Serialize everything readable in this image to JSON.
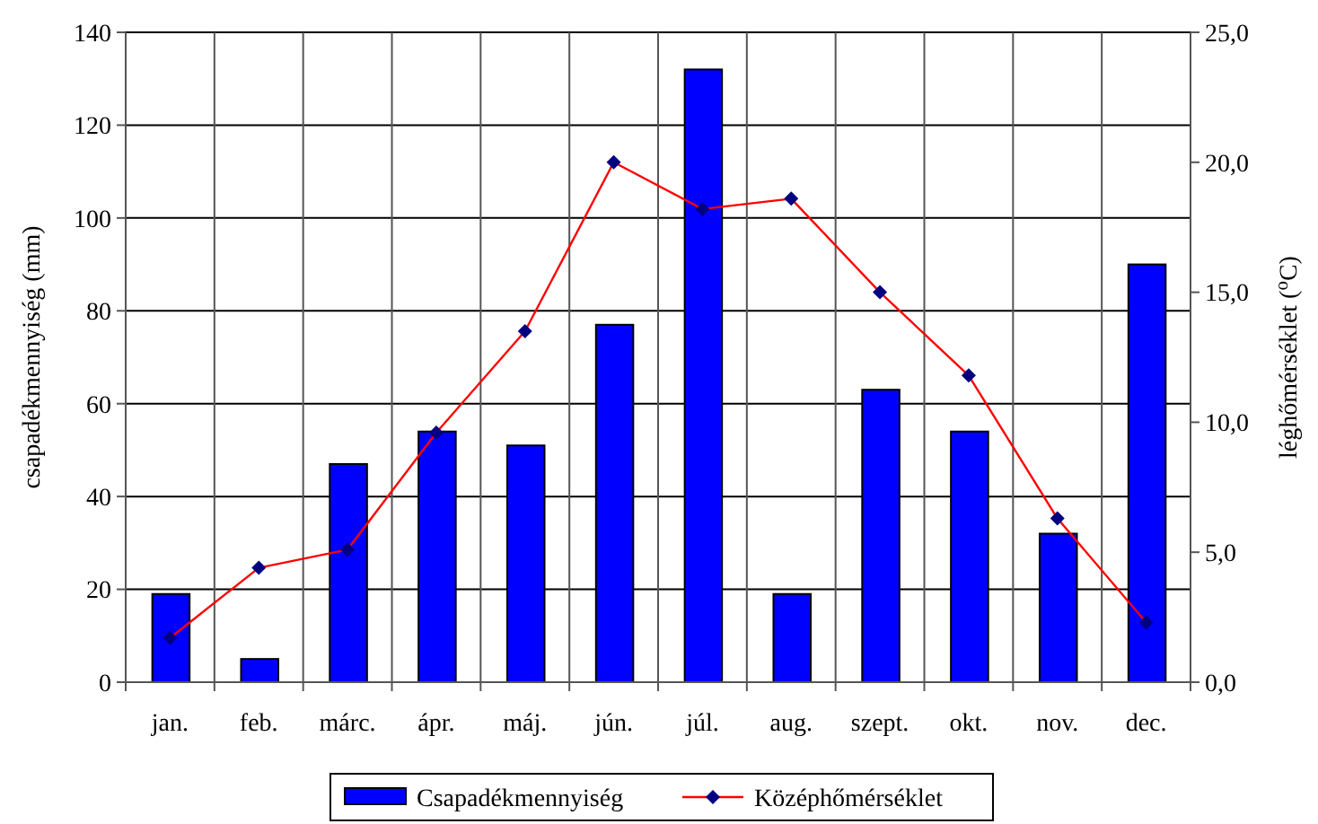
{
  "chart_data": {
    "type": "bar",
    "categories": [
      "jan.",
      "feb.",
      "márc.",
      "ápr.",
      "máj.",
      "jún.",
      "júl.",
      "aug.",
      "szept.",
      "okt.",
      "nov.",
      "dec."
    ],
    "series": [
      {
        "name": "Csapadékmennyiség",
        "color": "#0000ff",
        "values": [
          19,
          5,
          47,
          54,
          51,
          77,
          132,
          19,
          63,
          54,
          32,
          90
        ]
      },
      {
        "name": "Középhőmérséklet",
        "type": "line",
        "axis": "y2",
        "color": "#ff0000",
        "marker": "diamond",
        "values": [
          1.7,
          4.4,
          5.1,
          9.6,
          13.5,
          20.0,
          18.2,
          18.6,
          15.0,
          11.8,
          6.3,
          2.3
        ]
      }
    ],
    "ylabel": "csapadékmennyiség (mm)",
    "y2label": "léghőmérséklet ($^{o}$C)",
    "ylim": [
      0,
      140
    ],
    "yticks": [
      0,
      20,
      40,
      60,
      80,
      100,
      120,
      140
    ],
    "y2lim": [
      0,
      25
    ],
    "y2ticks": [
      {
        "value": 0,
        "label": "0,0"
      },
      {
        "value": 5,
        "label": "5,0"
      },
      {
        "value": 10,
        "label": "10,0"
      },
      {
        "value": 15,
        "label": "15,0"
      },
      {
        "value": 20,
        "label": "20,0"
      },
      {
        "value": 25,
        "label": "25,0"
      }
    ],
    "grid": true,
    "legend": "bottom"
  }
}
